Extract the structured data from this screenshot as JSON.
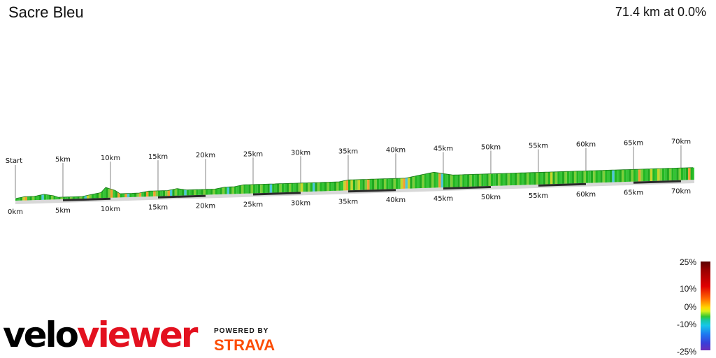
{
  "header": {
    "title": "Sacre Bleu",
    "stats": "71.4 km at 0.0%"
  },
  "chart_data": {
    "type": "area",
    "title": "Sacre Bleu",
    "subtitle": "71.4 km at 0.0%",
    "distance_km": 71.4,
    "average_gradient_pct": 0.0,
    "start_label": "Start",
    "top_markers": [
      "5km",
      "10km",
      "15km",
      "20km",
      "25km",
      "30km",
      "35km",
      "40km",
      "45km",
      "50km",
      "55km",
      "60km",
      "65km",
      "70km"
    ],
    "bottom_markers": [
      "0km",
      "5km",
      "10km",
      "15km",
      "20km",
      "25km",
      "30km",
      "35km",
      "40km",
      "45km",
      "50km",
      "55km",
      "60km",
      "65km",
      "70km"
    ],
    "profile": {
      "x_km": [
        0,
        1,
        2,
        3,
        4,
        4.5,
        5,
        6,
        7,
        8,
        9,
        9.5,
        10,
        10.5,
        11,
        12,
        13,
        14,
        15,
        16,
        17,
        18,
        19,
        20,
        21,
        22,
        23,
        24,
        25,
        26,
        27,
        28,
        29,
        30,
        31,
        32,
        33,
        34,
        35,
        36,
        37,
        38,
        39,
        40,
        41,
        42,
        43,
        44,
        45,
        46,
        47,
        48,
        49,
        50,
        51,
        52,
        53,
        54,
        55,
        56,
        57,
        58,
        59,
        60,
        61,
        62,
        63,
        64,
        65,
        66,
        67,
        68,
        69,
        70,
        71,
        71.4
      ],
      "relative_height": [
        0,
        1,
        1,
        2,
        1,
        0,
        0,
        0,
        0,
        1,
        2,
        5,
        4,
        3,
        1,
        1,
        1,
        2,
        2,
        2,
        3,
        2,
        2,
        2,
        2,
        3,
        3,
        4,
        4,
        4,
        4,
        4,
        4,
        4,
        4,
        4,
        4,
        4,
        5,
        5,
        5,
        5,
        5,
        5,
        5,
        6,
        7,
        8,
        7,
        6,
        6,
        6,
        6,
        6,
        6,
        6,
        6,
        6,
        6,
        6,
        6,
        6,
        6,
        6,
        6,
        6,
        6,
        6,
        6,
        6,
        6,
        6,
        6,
        6,
        6,
        6
      ]
    },
    "gradient_legend": {
      "ticks": [
        "25%",
        "10%",
        "0%",
        "-10%",
        "-25%"
      ]
    }
  },
  "branding": {
    "logo_part1": "velo",
    "logo_part2": "viewer",
    "powered_by": "POWERED BY",
    "strava": "STRAVA"
  }
}
